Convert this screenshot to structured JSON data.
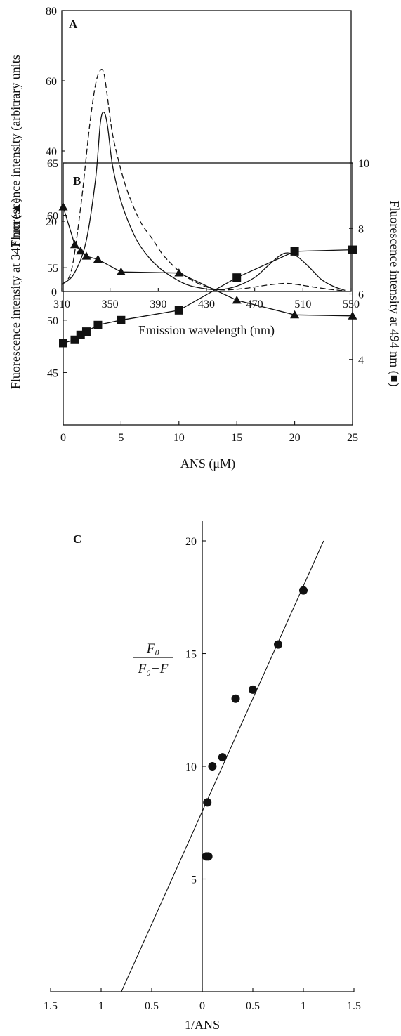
{
  "chart_data": [
    {
      "panel": "A",
      "type": "line",
      "xlabel": "Emission wavelength (nm)",
      "ylabel": "Fluorescence intensity (arbitrary units",
      "xlim": [
        310,
        550
      ],
      "ylim": [
        0,
        80
      ],
      "xticks": [
        310,
        350,
        390,
        430,
        470,
        510,
        550
      ],
      "yticks": [
        0,
        20,
        40,
        60,
        80
      ],
      "series": [
        {
          "style": "solid",
          "x": [
            310,
            320,
            330,
            338,
            342,
            345,
            348,
            352,
            358,
            365,
            375,
            390,
            410,
            425,
            440,
            455,
            470,
            480,
            490,
            497,
            505,
            515,
            525,
            535,
            545
          ],
          "y": [
            2,
            5,
            14,
            32,
            48,
            51,
            47,
            36,
            27,
            20,
            13,
            7,
            2.5,
            1,
            0.5,
            1.5,
            4,
            7,
            10,
            11,
            10,
            7,
            3.5,
            1.5,
            0.3
          ]
        },
        {
          "style": "dashed",
          "x": [
            310,
            318,
            326,
            333,
            338,
            342,
            345,
            348,
            352,
            358,
            365,
            375,
            385,
            395,
            410,
            425,
            440,
            460,
            480,
            495,
            505,
            520,
            535,
            545
          ],
          "y": [
            2,
            6,
            25,
            47,
            59,
            63,
            62,
            55,
            45,
            36,
            28,
            20,
            15,
            10,
            5,
            2,
            0.5,
            0.8,
            1.8,
            2.3,
            2,
            1.2,
            0.5,
            0.2
          ]
        }
      ]
    },
    {
      "panel": "B",
      "type": "line",
      "xlabel": "ANS (μM)",
      "ylabel": "Fluorescence intensity at 347 nm (▲)",
      "y2label": "Fluorescence intensity at 494 nm (■)",
      "xlim": [
        0,
        25
      ],
      "ylim": [
        40,
        65
      ],
      "y2lim": [
        2,
        10
      ],
      "xticks": [
        0,
        5,
        10,
        15,
        20,
        25
      ],
      "yticks": [
        45,
        50,
        55,
        60,
        65
      ],
      "y2ticks": [
        4,
        6,
        8,
        10
      ],
      "series": [
        {
          "marker": "triangle",
          "axis": "left",
          "x": [
            0,
            1,
            1.5,
            2,
            3,
            5,
            10,
            15,
            20,
            25
          ],
          "y": [
            60.8,
            57.2,
            56.6,
            56.1,
            55.8,
            54.6,
            54.5,
            51.9,
            50.5,
            50.4
          ]
        },
        {
          "marker": "square",
          "axis": "right",
          "x": [
            0,
            1,
            1.5,
            2,
            3,
            5,
            10,
            15,
            20,
            25
          ],
          "y": [
            4.5,
            4.6,
            4.75,
            4.85,
            5.05,
            5.2,
            5.5,
            6.5,
            7.3,
            7.35
          ]
        }
      ]
    },
    {
      "panel": "C",
      "type": "scatter",
      "xlabel": "1/ANS",
      "ylabel_numerator": "F₀",
      "ylabel_denominator": "F₀−F",
      "xlim": [
        -1.5,
        1.5
      ],
      "ylim": [
        0,
        20
      ],
      "xticks": [
        -1.5,
        -1,
        -0.5,
        0,
        0.5,
        1,
        1.5
      ],
      "xtick_labels": [
        "1.5",
        "1",
        "0.5",
        "0",
        "0.5",
        "1",
        "1.5"
      ],
      "yticks": [
        5,
        10,
        15,
        20
      ],
      "points": {
        "x": [
          0.04,
          0.06,
          0.05,
          0.1,
          0.2,
          0.33,
          0.5,
          0.75,
          1.0
        ],
        "y": [
          6,
          6,
          8.4,
          10,
          10.4,
          13,
          13.4,
          15.4,
          17.8
        ]
      },
      "fit_line": {
        "slope": 10.0,
        "intercept": 8.0,
        "x_range": [
          -0.8,
          1.2
        ]
      }
    }
  ]
}
